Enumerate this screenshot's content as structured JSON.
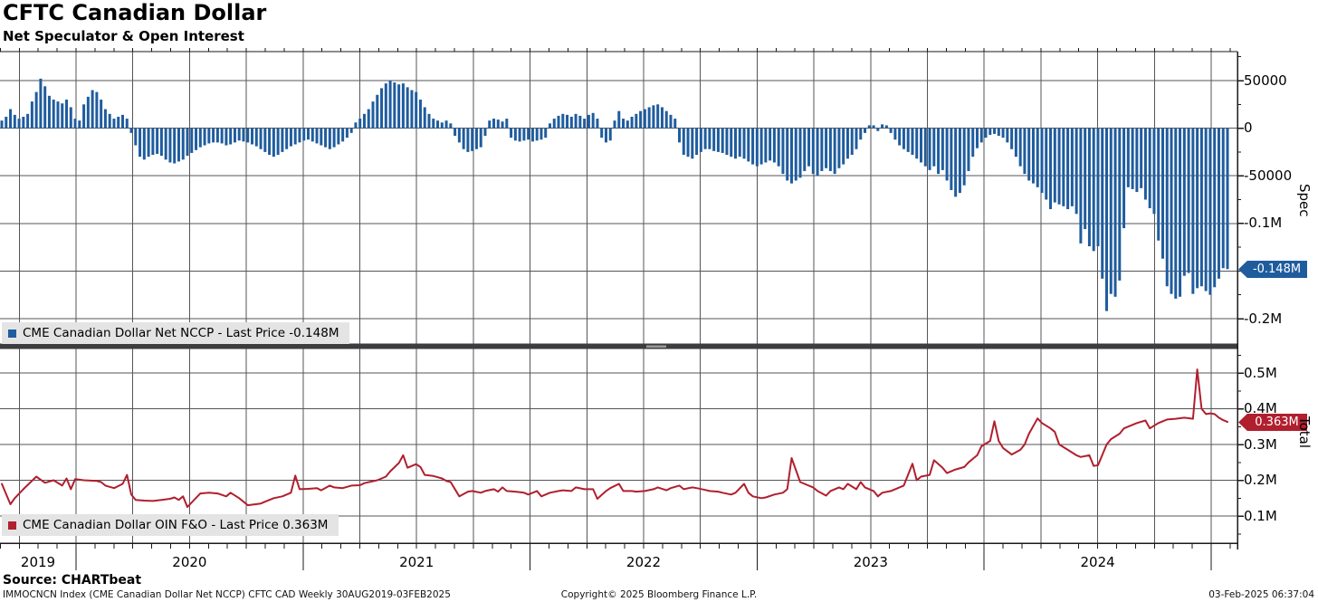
{
  "header": {
    "title": "CFTC Canadian Dollar",
    "subtitle": "Net Speculator & Open Interest"
  },
  "source_line": "Source: CHARTbeat",
  "footer": {
    "left": "IMMOCNCN Index (CME Canadian Dollar Net NCCP) CFTC CAD  Weekly 30AUG2019-03FEB2025",
    "center": "Copyright© 2025 Bloomberg Finance L.P.",
    "right": "03-Feb-2025 06:37:04"
  },
  "colors": {
    "bar_blue": "#1f5c9e",
    "line_red": "#b01f2e",
    "grid": "#55555a",
    "axis": "#1a1a1a",
    "legend_bg": "#e4e4e4",
    "divider": "#3d3d40",
    "divider_handle": "#9a9a9a",
    "badge_spec_bg": "#1f5c9e",
    "badge_total_bg": "#b01f2e",
    "badge_text": "#ffffff"
  },
  "x_axis": {
    "years": [
      "2019",
      "2020",
      "2021",
      "2022",
      "2023",
      "2024"
    ]
  },
  "panels": {
    "spec": {
      "axis_title": "Spec",
      "legend": "CME Canadian Dollar Net NCCP - Last Price -0.148M",
      "last_price_label": "-0.148M",
      "y_ticks": [
        {
          "v": 50000,
          "label": "50000"
        },
        {
          "v": 0,
          "label": "0"
        },
        {
          "v": -50000,
          "label": "-50000"
        },
        {
          "v": -100000,
          "label": "-0.1M"
        },
        {
          "v": -200000,
          "label": "-0.2M"
        }
      ]
    },
    "total": {
      "axis_title": "Total",
      "legend": "CME Canadian Dollar OIN F&O - Last Price 0.363M",
      "last_price_label": "0.363M",
      "y_ticks": [
        {
          "v": 0.5,
          "label": "0.5M"
        },
        {
          "v": 0.4,
          "label": "0.4M"
        },
        {
          "v": 0.3,
          "label": "0.3M"
        },
        {
          "v": 0.2,
          "label": "0.2M"
        },
        {
          "v": 0.1,
          "label": "0.1M"
        }
      ]
    }
  },
  "chart_data": [
    {
      "type": "bar",
      "title": "CME Canadian Dollar Net NCCP",
      "series_name": "Net Speculator (NCCP) weekly net position, contracts",
      "frequency": "weekly",
      "x_start": "2019-08-30",
      "x_end": "2025-02-03",
      "last_price": -148000,
      "ylim": [
        -227000,
        80000
      ],
      "y_gridlines": [
        50000,
        0,
        -50000,
        -100000,
        -150000,
        -200000
      ],
      "values": [
        8000,
        12000,
        20000,
        14000,
        10000,
        12000,
        15000,
        28000,
        38000,
        52000,
        44000,
        34000,
        30000,
        28000,
        26000,
        30000,
        22000,
        10000,
        8000,
        25000,
        33000,
        40000,
        38000,
        30000,
        20000,
        15000,
        10000,
        12000,
        14000,
        10000,
        -5000,
        -18000,
        -30000,
        -33000,
        -30000,
        -28000,
        -27000,
        -29000,
        -33000,
        -36000,
        -37000,
        -35000,
        -33000,
        -29000,
        -26000,
        -23000,
        -20000,
        -18000,
        -16000,
        -15000,
        -15000,
        -16000,
        -18000,
        -17000,
        -15000,
        -13000,
        -14000,
        -15000,
        -17000,
        -19000,
        -22000,
        -25000,
        -28000,
        -30000,
        -28000,
        -25000,
        -22000,
        -19000,
        -17000,
        -15000,
        -13000,
        -12000,
        -14000,
        -16000,
        -18000,
        -20000,
        -22000,
        -20000,
        -17000,
        -14000,
        -10000,
        -5000,
        6000,
        10000,
        15000,
        20000,
        28000,
        35000,
        42000,
        47000,
        50000,
        48000,
        46000,
        47000,
        43000,
        40000,
        38000,
        30000,
        22000,
        15000,
        10000,
        8000,
        6000,
        8000,
        5000,
        -8000,
        -15000,
        -22000,
        -25000,
        -24000,
        -22000,
        -20000,
        -8000,
        8000,
        10000,
        9000,
        7000,
        10000,
        -10000,
        -13000,
        -14000,
        -13000,
        -12000,
        -14000,
        -13000,
        -12000,
        -10000,
        5000,
        10000,
        13000,
        15000,
        14000,
        12000,
        15000,
        13000,
        10000,
        14000,
        16000,
        10000,
        -10000,
        -15000,
        -13000,
        8000,
        18000,
        10000,
        8000,
        12000,
        15000,
        18000,
        20000,
        22000,
        24000,
        25000,
        22000,
        18000,
        14000,
        10000,
        -15000,
        -28000,
        -30000,
        -32000,
        -28000,
        -25000,
        -22000,
        -22000,
        -24000,
        -25000,
        -26000,
        -28000,
        -30000,
        -32000,
        -30000,
        -32000,
        -35000,
        -38000,
        -40000,
        -38000,
        -36000,
        -34000,
        -36000,
        -40000,
        -48000,
        -55000,
        -58000,
        -55000,
        -52000,
        -45000,
        -40000,
        -48000,
        -50000,
        -45000,
        -42000,
        -45000,
        -48000,
        -42000,
        -38000,
        -32000,
        -28000,
        -22000,
        -12000,
        -5000,
        3000,
        3000,
        -3000,
        4000,
        3000,
        -5000,
        -12000,
        -18000,
        -22000,
        -25000,
        -28000,
        -32000,
        -36000,
        -40000,
        -44000,
        -40000,
        -48000,
        -44000,
        -55000,
        -65000,
        -72000,
        -68000,
        -60000,
        -45000,
        -30000,
        -21000,
        -15000,
        -10000,
        -7000,
        -6000,
        -8000,
        -10000,
        -15000,
        -22000,
        -30000,
        -40000,
        -48000,
        -55000,
        -58000,
        -62000,
        -68000,
        -75000,
        -85000,
        -78000,
        -80000,
        -82000,
        -85000,
        -82000,
        -90000,
        -121000,
        -106000,
        -124000,
        -129000,
        -124000,
        -158000,
        -192000,
        -174000,
        -177000,
        -160000,
        -105000,
        -62000,
        -64000,
        -67000,
        -63000,
        -75000,
        -84000,
        -90000,
        -118000,
        -137000,
        -166000,
        -174000,
        -179000,
        -177000,
        -155000,
        -152000,
        -174000,
        -168000,
        -166000,
        -171000,
        -175000,
        -167000,
        -158000,
        -147000,
        -148000
      ]
    },
    {
      "type": "line",
      "title": "CME Canadian Dollar OIN F&O",
      "series_name": "Open Interest futures & options, millions of contracts",
      "frequency": "weekly",
      "x_start": "2019-08-30",
      "x_end": "2025-02-03",
      "last_price": 0.363,
      "ylim": [
        0.02,
        0.56
      ],
      "y_gridlines": [
        0.5,
        0.4,
        0.3,
        0.2,
        0.1
      ],
      "points": [
        [
          0,
          0.19
        ],
        [
          2,
          0.133
        ],
        [
          3,
          0.15
        ],
        [
          5,
          0.175
        ],
        [
          8,
          0.21
        ],
        [
          10,
          0.193
        ],
        [
          12,
          0.2
        ],
        [
          14,
          0.185
        ],
        [
          15,
          0.205
        ],
        [
          16,
          0.175
        ],
        [
          17,
          0.203
        ],
        [
          19,
          0.2
        ],
        [
          22,
          0.198
        ],
        [
          23,
          0.195
        ],
        [
          24,
          0.185
        ],
        [
          26,
          0.178
        ],
        [
          28,
          0.19
        ],
        [
          29,
          0.215
        ],
        [
          30,
          0.16
        ],
        [
          31,
          0.145
        ],
        [
          33,
          0.143
        ],
        [
          35,
          0.142
        ],
        [
          37,
          0.145
        ],
        [
          39,
          0.148
        ],
        [
          40,
          0.152
        ],
        [
          41,
          0.145
        ],
        [
          42,
          0.155
        ],
        [
          43,
          0.125
        ],
        [
          44,
          0.138
        ],
        [
          46,
          0.163
        ],
        [
          48,
          0.165
        ],
        [
          50,
          0.163
        ],
        [
          52,
          0.155
        ],
        [
          53,
          0.165
        ],
        [
          55,
          0.15
        ],
        [
          56,
          0.14
        ],
        [
          57,
          0.13
        ],
        [
          60,
          0.135
        ],
        [
          61,
          0.14
        ],
        [
          63,
          0.15
        ],
        [
          65,
          0.155
        ],
        [
          67,
          0.165
        ],
        [
          68,
          0.213
        ],
        [
          69,
          0.175
        ],
        [
          71,
          0.176
        ],
        [
          73,
          0.178
        ],
        [
          74,
          0.172
        ],
        [
          76,
          0.185
        ],
        [
          77,
          0.18
        ],
        [
          79,
          0.178
        ],
        [
          81,
          0.185
        ],
        [
          83,
          0.186
        ],
        [
          84,
          0.192
        ],
        [
          87,
          0.2
        ],
        [
          89,
          0.21
        ],
        [
          90,
          0.225
        ],
        [
          92,
          0.248
        ],
        [
          93,
          0.27
        ],
        [
          94,
          0.235
        ],
        [
          96,
          0.245
        ],
        [
          97,
          0.237
        ],
        [
          98,
          0.215
        ],
        [
          100,
          0.212
        ],
        [
          102,
          0.205
        ],
        [
          103,
          0.198
        ],
        [
          104,
          0.195
        ],
        [
          106,
          0.155
        ],
        [
          108,
          0.168
        ],
        [
          109,
          0.17
        ],
        [
          111,
          0.165
        ],
        [
          112,
          0.17
        ],
        [
          114,
          0.175
        ],
        [
          115,
          0.168
        ],
        [
          116,
          0.18
        ],
        [
          117,
          0.17
        ],
        [
          119,
          0.168
        ],
        [
          121,
          0.165
        ],
        [
          122,
          0.16
        ],
        [
          124,
          0.17
        ],
        [
          125,
          0.155
        ],
        [
          127,
          0.165
        ],
        [
          129,
          0.17
        ],
        [
          130,
          0.172
        ],
        [
          132,
          0.17
        ],
        [
          133,
          0.18
        ],
        [
          135,
          0.175
        ],
        [
          137,
          0.175
        ],
        [
          138,
          0.148
        ],
        [
          140,
          0.17
        ],
        [
          141,
          0.178
        ],
        [
          143,
          0.19
        ],
        [
          144,
          0.17
        ],
        [
          146,
          0.17
        ],
        [
          147,
          0.168
        ],
        [
          149,
          0.17
        ],
        [
          151,
          0.175
        ],
        [
          152,
          0.18
        ],
        [
          154,
          0.172
        ],
        [
          155,
          0.178
        ],
        [
          157,
          0.185
        ],
        [
          158,
          0.175
        ],
        [
          160,
          0.18
        ],
        [
          161,
          0.178
        ],
        [
          163,
          0.173
        ],
        [
          164,
          0.17
        ],
        [
          166,
          0.168
        ],
        [
          167,
          0.165
        ],
        [
          169,
          0.16
        ],
        [
          170,
          0.165
        ],
        [
          172,
          0.19
        ],
        [
          173,
          0.165
        ],
        [
          174,
          0.155
        ],
        [
          176,
          0.15
        ],
        [
          177,
          0.152
        ],
        [
          179,
          0.16
        ],
        [
          181,
          0.165
        ],
        [
          182,
          0.175
        ],
        [
          183,
          0.262
        ],
        [
          185,
          0.195
        ],
        [
          186,
          0.19
        ],
        [
          188,
          0.18
        ],
        [
          189,
          0.17
        ],
        [
          191,
          0.157
        ],
        [
          192,
          0.17
        ],
        [
          194,
          0.18
        ],
        [
          195,
          0.175
        ],
        [
          196,
          0.19
        ],
        [
          198,
          0.175
        ],
        [
          199,
          0.195
        ],
        [
          200,
          0.18
        ],
        [
          202,
          0.17
        ],
        [
          203,
          0.155
        ],
        [
          204,
          0.165
        ],
        [
          206,
          0.17
        ],
        [
          207,
          0.175
        ],
        [
          209,
          0.185
        ],
        [
          211,
          0.246
        ],
        [
          212,
          0.2
        ],
        [
          213,
          0.21
        ],
        [
          215,
          0.215
        ],
        [
          216,
          0.256
        ],
        [
          218,
          0.235
        ],
        [
          219,
          0.22
        ],
        [
          220,
          0.225
        ],
        [
          221,
          0.23
        ],
        [
          223,
          0.237
        ],
        [
          224,
          0.25
        ],
        [
          226,
          0.27
        ],
        [
          227,
          0.295
        ],
        [
          229,
          0.31
        ],
        [
          230,
          0.365
        ],
        [
          231,
          0.31
        ],
        [
          232,
          0.29
        ],
        [
          234,
          0.272
        ],
        [
          236,
          0.285
        ],
        [
          237,
          0.3
        ],
        [
          238,
          0.33
        ],
        [
          240,
          0.373
        ],
        [
          241,
          0.36
        ],
        [
          243,
          0.345
        ],
        [
          244,
          0.335
        ],
        [
          245,
          0.3
        ],
        [
          247,
          0.285
        ],
        [
          249,
          0.27
        ],
        [
          250,
          0.265
        ],
        [
          252,
          0.27
        ],
        [
          253,
          0.24
        ],
        [
          254,
          0.242
        ],
        [
          256,
          0.3
        ],
        [
          257,
          0.315
        ],
        [
          259,
          0.33
        ],
        [
          260,
          0.345
        ],
        [
          262,
          0.355
        ],
        [
          263,
          0.36
        ],
        [
          265,
          0.367
        ],
        [
          266,
          0.345
        ],
        [
          268,
          0.36
        ],
        [
          270,
          0.37
        ],
        [
          272,
          0.372
        ],
        [
          274,
          0.375
        ],
        [
          276,
          0.372
        ],
        [
          277,
          0.51
        ],
        [
          278,
          0.4
        ],
        [
          279,
          0.385
        ],
        [
          280,
          0.387
        ],
        [
          281,
          0.385
        ],
        [
          282,
          0.375
        ],
        [
          283,
          0.368
        ],
        [
          284,
          0.363
        ]
      ]
    }
  ]
}
